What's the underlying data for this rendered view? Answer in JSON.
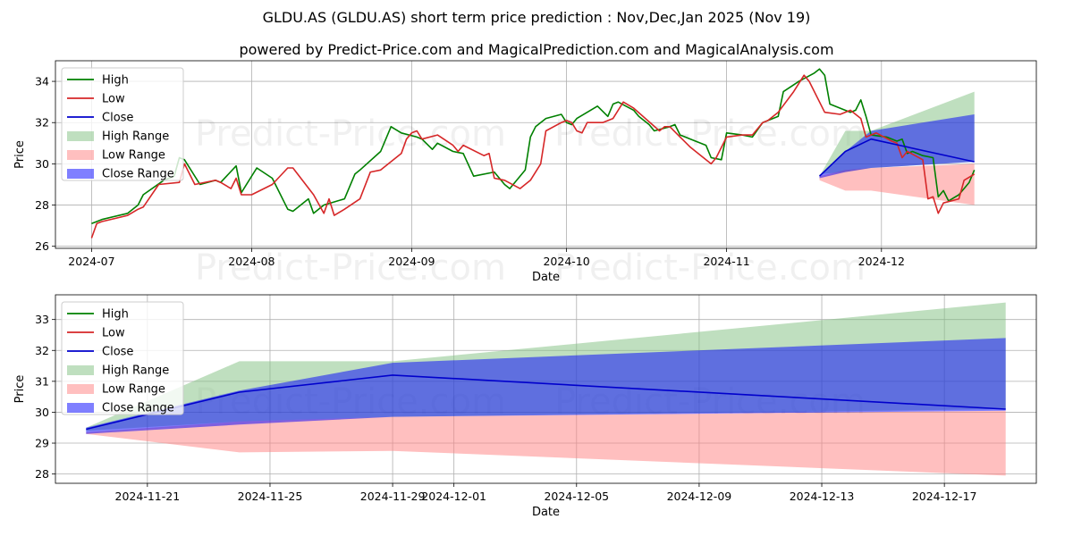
{
  "page": {
    "title": "GLDU.AS (GLDU.AS) short term price prediction : Nov,Dec,Jan 2025 (Nov 19)",
    "subtitle": "powered by Predict-Price.com and MagicalPrediction.com and MagicalAnalysis.com",
    "watermark": "Predict-Price.com"
  },
  "colors": {
    "high": "#008000",
    "low": "#d62728",
    "close": "#0000cc",
    "high_range": "#7fbf7f",
    "low_range": "#ff7f7f",
    "close_range": "#0000ff"
  },
  "chart_data": [
    {
      "type": "line",
      "panel": "top",
      "xlabel": "Date",
      "ylabel": "Price",
      "xlim": [
        "2024-06-24",
        "2024-12-31"
      ],
      "ylim": [
        25.9,
        35.0
      ],
      "grid": true,
      "legend_position": "top-left",
      "x_ticks": [
        "2024-07",
        "2024-08",
        "2024-09",
        "2024-10",
        "2024-11",
        "2024-12"
      ],
      "y_ticks": [
        26,
        28,
        30,
        32,
        34
      ],
      "series": [
        {
          "name": "High",
          "kind": "line",
          "points": [
            [
              "2024-07-01",
              27.1
            ],
            [
              "2024-07-03",
              27.3
            ],
            [
              "2024-07-08",
              27.6
            ],
            [
              "2024-07-10",
              28.0
            ],
            [
              "2024-07-11",
              28.5
            ],
            [
              "2024-07-15",
              29.2
            ],
            [
              "2024-07-17",
              29.4
            ],
            [
              "2024-07-18",
              30.3
            ],
            [
              "2024-07-19",
              30.2
            ],
            [
              "2024-07-22",
              29.0
            ],
            [
              "2024-07-25",
              29.2
            ],
            [
              "2024-07-26",
              29.1
            ],
            [
              "2024-07-29",
              29.9
            ],
            [
              "2024-07-30",
              28.6
            ],
            [
              "2024-08-02",
              29.8
            ],
            [
              "2024-08-05",
              29.3
            ],
            [
              "2024-08-08",
              27.8
            ],
            [
              "2024-08-09",
              27.7
            ],
            [
              "2024-08-12",
              28.3
            ],
            [
              "2024-08-13",
              27.6
            ],
            [
              "2024-08-15",
              28.0
            ],
            [
              "2024-08-19",
              28.3
            ],
            [
              "2024-08-21",
              29.5
            ],
            [
              "2024-08-22",
              29.7
            ],
            [
              "2024-08-26",
              30.6
            ],
            [
              "2024-08-28",
              31.8
            ],
            [
              "2024-08-30",
              31.5
            ],
            [
              "2024-09-02",
              31.3
            ],
            [
              "2024-09-03",
              31.2
            ],
            [
              "2024-09-05",
              30.7
            ],
            [
              "2024-09-06",
              31.0
            ],
            [
              "2024-09-09",
              30.6
            ],
            [
              "2024-09-11",
              30.5
            ],
            [
              "2024-09-13",
              29.4
            ],
            [
              "2024-09-17",
              29.6
            ],
            [
              "2024-09-19",
              29.0
            ],
            [
              "2024-09-20",
              28.8
            ],
            [
              "2024-09-23",
              29.7
            ],
            [
              "2024-09-24",
              31.3
            ],
            [
              "2024-09-25",
              31.8
            ],
            [
              "2024-09-27",
              32.2
            ],
            [
              "2024-09-30",
              32.4
            ],
            [
              "2024-10-01",
              32.0
            ],
            [
              "2024-10-02",
              31.9
            ],
            [
              "2024-10-03",
              32.2
            ],
            [
              "2024-10-07",
              32.8
            ],
            [
              "2024-10-09",
              32.3
            ],
            [
              "2024-10-10",
              32.9
            ],
            [
              "2024-10-11",
              33.0
            ],
            [
              "2024-10-14",
              32.6
            ],
            [
              "2024-10-15",
              32.3
            ],
            [
              "2024-10-17",
              31.9
            ],
            [
              "2024-10-18",
              31.6
            ],
            [
              "2024-10-21",
              31.8
            ],
            [
              "2024-10-22",
              31.9
            ],
            [
              "2024-10-23",
              31.4
            ],
            [
              "2024-10-25",
              31.2
            ],
            [
              "2024-10-28",
              30.9
            ],
            [
              "2024-10-29",
              30.3
            ],
            [
              "2024-10-31",
              30.2
            ],
            [
              "2024-11-01",
              31.5
            ],
            [
              "2024-11-04",
              31.4
            ],
            [
              "2024-11-06",
              31.3
            ],
            [
              "2024-11-08",
              32.0
            ],
            [
              "2024-11-11",
              32.3
            ],
            [
              "2024-11-12",
              33.5
            ],
            [
              "2024-11-15",
              34.0
            ],
            [
              "2024-11-18",
              34.4
            ],
            [
              "2024-11-19",
              34.6
            ],
            [
              "2024-11-20",
              34.3
            ],
            [
              "2024-11-21",
              32.9
            ],
            [
              "2024-11-25",
              32.5
            ],
            [
              "2024-11-26",
              32.6
            ],
            [
              "2024-11-27",
              33.1
            ],
            [
              "2024-11-28",
              32.3
            ],
            [
              "2024-11-29",
              31.4
            ],
            [
              "2024-12-02",
              31.3
            ],
            [
              "2024-12-04",
              31.1
            ],
            [
              "2024-12-05",
              31.2
            ],
            [
              "2024-12-06",
              30.5
            ],
            [
              "2024-12-07",
              30.6
            ],
            [
              "2024-12-09",
              30.4
            ],
            [
              "2024-12-11",
              30.3
            ],
            [
              "2024-12-12",
              28.4
            ],
            [
              "2024-12-13",
              28.7
            ],
            [
              "2024-12-14",
              28.2
            ],
            [
              "2024-12-16",
              28.5
            ],
            [
              "2024-12-18",
              29.1
            ],
            [
              "2024-12-19",
              29.7
            ]
          ]
        },
        {
          "name": "Low",
          "kind": "line",
          "points": [
            [
              "2024-07-01",
              26.4
            ],
            [
              "2024-07-02",
              27.1
            ],
            [
              "2024-07-03",
              27.2
            ],
            [
              "2024-07-08",
              27.5
            ],
            [
              "2024-07-10",
              27.8
            ],
            [
              "2024-07-11",
              27.9
            ],
            [
              "2024-07-14",
              29.0
            ],
            [
              "2024-07-18",
              29.1
            ],
            [
              "2024-07-19",
              30.0
            ],
            [
              "2024-07-21",
              29.0
            ],
            [
              "2024-07-25",
              29.2
            ],
            [
              "2024-07-26",
              29.1
            ],
            [
              "2024-07-28",
              28.8
            ],
            [
              "2024-07-29",
              29.3
            ],
            [
              "2024-07-30",
              28.5
            ],
            [
              "2024-08-01",
              28.5
            ],
            [
              "2024-08-05",
              29.0
            ],
            [
              "2024-08-08",
              29.8
            ],
            [
              "2024-08-09",
              29.8
            ],
            [
              "2024-08-13",
              28.5
            ],
            [
              "2024-08-15",
              27.6
            ],
            [
              "2024-08-16",
              28.3
            ],
            [
              "2024-08-17",
              27.5
            ],
            [
              "2024-08-19",
              27.8
            ],
            [
              "2024-08-22",
              28.3
            ],
            [
              "2024-08-24",
              29.6
            ],
            [
              "2024-08-26",
              29.7
            ],
            [
              "2024-08-30",
              30.5
            ],
            [
              "2024-08-31",
              31.2
            ],
            [
              "2024-09-01",
              31.5
            ],
            [
              "2024-09-02",
              31.6
            ],
            [
              "2024-09-03",
              31.2
            ],
            [
              "2024-09-06",
              31.4
            ],
            [
              "2024-09-09",
              30.9
            ],
            [
              "2024-09-10",
              30.6
            ],
            [
              "2024-09-11",
              30.9
            ],
            [
              "2024-09-15",
              30.4
            ],
            [
              "2024-09-16",
              30.5
            ],
            [
              "2024-09-17",
              29.3
            ],
            [
              "2024-09-19",
              29.2
            ],
            [
              "2024-09-22",
              28.8
            ],
            [
              "2024-09-24",
              29.2
            ],
            [
              "2024-09-26",
              30.0
            ],
            [
              "2024-09-27",
              31.6
            ],
            [
              "2024-09-30",
              32.0
            ],
            [
              "2024-10-01",
              32.1
            ],
            [
              "2024-10-02",
              32.0
            ],
            [
              "2024-10-03",
              31.6
            ],
            [
              "2024-10-04",
              31.5
            ],
            [
              "2024-10-05",
              32.0
            ],
            [
              "2024-10-08",
              32.0
            ],
            [
              "2024-10-10",
              32.2
            ],
            [
              "2024-10-12",
              33.0
            ],
            [
              "2024-10-14",
              32.7
            ],
            [
              "2024-10-19",
              31.6
            ],
            [
              "2024-10-20",
              31.8
            ],
            [
              "2024-10-21",
              31.8
            ],
            [
              "2024-10-23",
              31.3
            ],
            [
              "2024-10-25",
              30.8
            ],
            [
              "2024-10-28",
              30.2
            ],
            [
              "2024-10-29",
              30.0
            ],
            [
              "2024-10-30",
              30.3
            ],
            [
              "2024-11-01",
              31.3
            ],
            [
              "2024-11-04",
              31.4
            ],
            [
              "2024-11-06",
              31.4
            ],
            [
              "2024-11-08",
              32.0
            ],
            [
              "2024-11-09",
              32.1
            ],
            [
              "2024-11-11",
              32.5
            ],
            [
              "2024-11-14",
              33.5
            ],
            [
              "2024-11-16",
              34.3
            ],
            [
              "2024-11-17",
              34.0
            ],
            [
              "2024-11-20",
              32.5
            ],
            [
              "2024-11-23",
              32.4
            ],
            [
              "2024-11-25",
              32.6
            ],
            [
              "2024-11-27",
              32.2
            ],
            [
              "2024-11-28",
              31.3
            ],
            [
              "2024-11-30",
              31.5
            ],
            [
              "2024-12-03",
              31.1
            ],
            [
              "2024-12-04",
              31.0
            ],
            [
              "2024-12-05",
              30.3
            ],
            [
              "2024-12-06",
              30.6
            ],
            [
              "2024-12-09",
              30.2
            ],
            [
              "2024-12-10",
              28.3
            ],
            [
              "2024-12-11",
              28.4
            ],
            [
              "2024-12-12",
              27.6
            ],
            [
              "2024-12-13",
              28.1
            ],
            [
              "2024-12-16",
              28.3
            ],
            [
              "2024-12-17",
              29.2
            ],
            [
              "2024-12-19",
              29.5
            ]
          ]
        },
        {
          "name": "Close",
          "kind": "line",
          "points": [
            [
              "2024-11-19",
              29.4
            ],
            [
              "2024-11-24",
              30.6
            ],
            [
              "2024-11-29",
              31.2
            ],
            [
              "2024-12-19",
              30.1
            ]
          ]
        },
        {
          "name": "High Range",
          "kind": "band",
          "points": [
            [
              "2024-11-19",
              29.4,
              29.5
            ],
            [
              "2024-11-24",
              31.6,
              29.6
            ],
            [
              "2024-11-29",
              31.6,
              29.8
            ],
            [
              "2024-12-19",
              33.5,
              30.1
            ]
          ]
        },
        {
          "name": "Low Range",
          "kind": "band",
          "points": [
            [
              "2024-11-19",
              29.4,
              29.2
            ],
            [
              "2024-11-24",
              29.7,
              28.7
            ],
            [
              "2024-11-29",
              29.8,
              28.7
            ],
            [
              "2024-12-19",
              30.0,
              28.0
            ]
          ]
        },
        {
          "name": "Close Range",
          "kind": "band",
          "points": [
            [
              "2024-11-19",
              29.4,
              29.3
            ],
            [
              "2024-11-24",
              30.6,
              29.6
            ],
            [
              "2024-11-29",
              31.6,
              29.8
            ],
            [
              "2024-12-19",
              32.4,
              30.1
            ]
          ]
        }
      ]
    },
    {
      "type": "line",
      "panel": "bottom",
      "xlabel": "Date",
      "ylabel": "Price",
      "xlim": [
        "2024-11-18",
        "2024-12-20"
      ],
      "ylim": [
        27.7,
        33.8
      ],
      "grid": true,
      "legend_position": "top-left",
      "x_ticks": [
        "2024-11-21",
        "2024-11-25",
        "2024-11-29",
        "2024-12-01",
        "2024-12-05",
        "2024-12-09",
        "2024-12-13",
        "2024-12-17"
      ],
      "y_ticks": [
        28,
        29,
        30,
        31,
        32,
        33
      ],
      "series": [
        {
          "name": "High",
          "kind": "line",
          "points": []
        },
        {
          "name": "Low",
          "kind": "line",
          "points": []
        },
        {
          "name": "Close",
          "kind": "line",
          "points": [
            [
              "2024-11-19",
              29.45
            ],
            [
              "2024-11-24",
              30.65
            ],
            [
              "2024-11-29",
              31.2
            ],
            [
              "2024-12-19",
              30.1
            ]
          ]
        },
        {
          "name": "High Range",
          "kind": "band",
          "points": [
            [
              "2024-11-19",
              29.5,
              29.4
            ],
            [
              "2024-11-24",
              31.65,
              29.7
            ],
            [
              "2024-11-29",
              31.65,
              29.85
            ],
            [
              "2024-12-19",
              33.55,
              30.1
            ]
          ]
        },
        {
          "name": "Low Range",
          "kind": "band",
          "points": [
            [
              "2024-11-19",
              29.35,
              29.3
            ],
            [
              "2024-11-24",
              29.7,
              28.7
            ],
            [
              "2024-11-29",
              29.85,
              28.75
            ],
            [
              "2024-12-19",
              30.05,
              27.95
            ]
          ]
        },
        {
          "name": "Close Range",
          "kind": "band",
          "points": [
            [
              "2024-11-19",
              29.5,
              29.3
            ],
            [
              "2024-11-24",
              30.7,
              29.6
            ],
            [
              "2024-11-29",
              31.6,
              29.85
            ],
            [
              "2024-12-19",
              32.4,
              30.05
            ]
          ]
        }
      ]
    }
  ]
}
